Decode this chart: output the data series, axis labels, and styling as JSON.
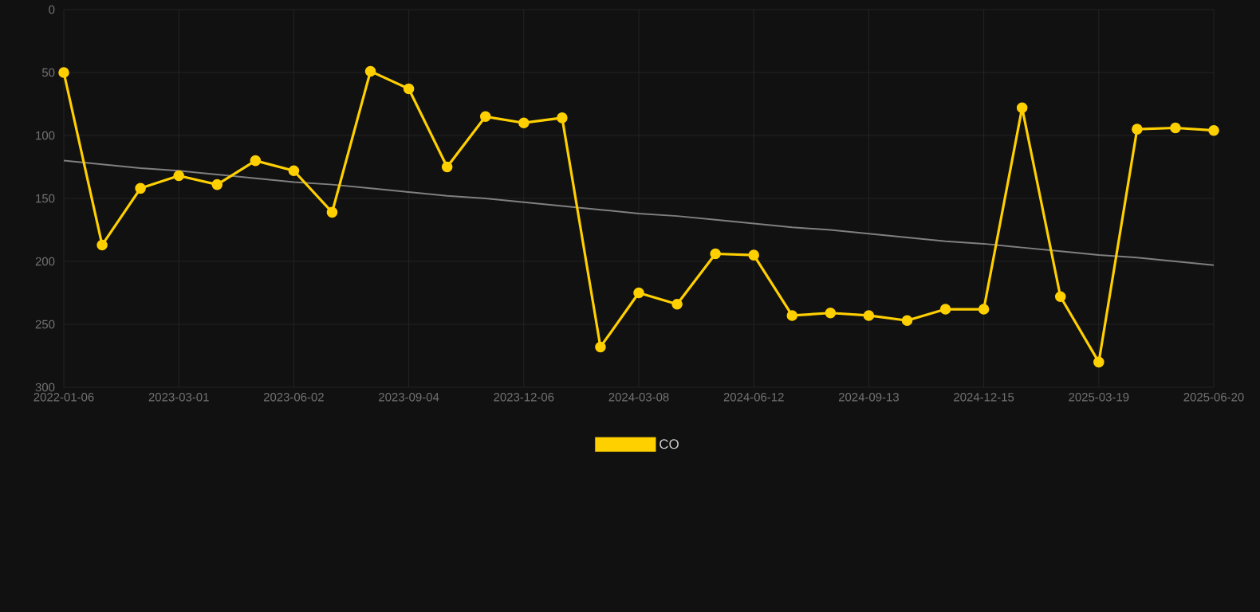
{
  "chart_data": {
    "type": "line",
    "categories": [
      "2022-01-06",
      null,
      null,
      "2023-03-01",
      null,
      null,
      "2023-06-02",
      null,
      null,
      "2023-09-04",
      null,
      null,
      "2023-12-06",
      null,
      null,
      "2024-03-08",
      null,
      null,
      "2024-06-12",
      null,
      null,
      "2024-09-13",
      null,
      null,
      "2024-12-15",
      null,
      null,
      "2025-03-19",
      null,
      null,
      "2025-06-20"
    ],
    "series": [
      {
        "name": "CO",
        "color": "#ffd000",
        "marker": "circle",
        "values": [
          50,
          187,
          142,
          132,
          139,
          120,
          128,
          161,
          49,
          63,
          125,
          85,
          90,
          86,
          268,
          225,
          234,
          194,
          195,
          243,
          241,
          243,
          247,
          238,
          238,
          78,
          228,
          280,
          95,
          94,
          96
        ]
      },
      {
        "color": "#808080",
        "marker": "none",
        "values": [
          120,
          123,
          126,
          128,
          131,
          134,
          137,
          139,
          142,
          145,
          148,
          150,
          153,
          156,
          159,
          162,
          164,
          167,
          170,
          173,
          175,
          178,
          181,
          184,
          186,
          189,
          192,
          195,
          197,
          200,
          203
        ]
      }
    ],
    "ylim": [
      300,
      0
    ],
    "yticks": [
      0,
      50,
      100,
      150,
      200,
      250,
      300
    ],
    "grid": true,
    "legend": "bottom",
    "line_style": "solid"
  }
}
